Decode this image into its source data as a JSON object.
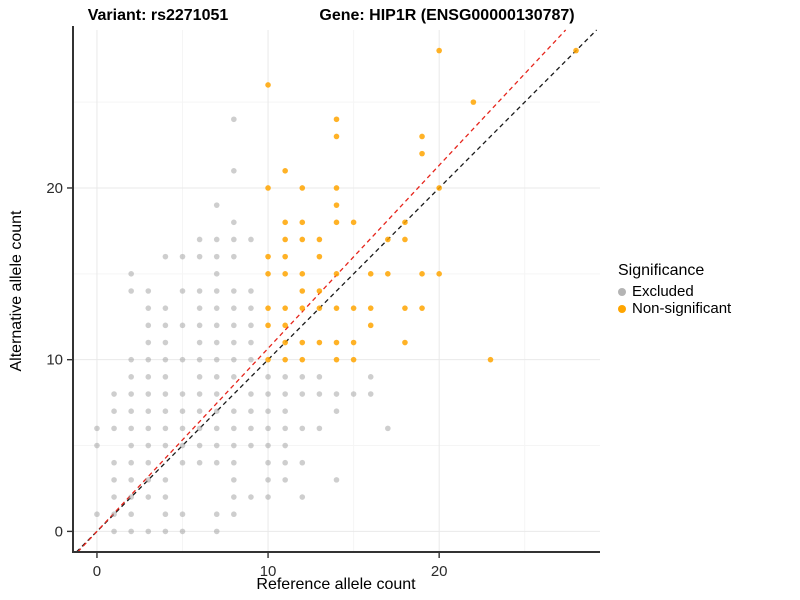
{
  "titles": {
    "variant": "Variant: rs2271051",
    "gene": "Gene: HIP1R (ENSG00000130787)"
  },
  "axes": {
    "x": {
      "label": "Reference allele count",
      "major_ticks": [
        0,
        10,
        20
      ],
      "minor_ticks": [
        5,
        15,
        25
      ]
    },
    "y": {
      "label": "Alternative allele count",
      "major_ticks": [
        0,
        10,
        20
      ],
      "minor_ticks": [
        5,
        15,
        25
      ]
    }
  },
  "legend": {
    "title": "Significance",
    "items": [
      {
        "label": "Excluded",
        "color": "#b4b4b4"
      },
      {
        "label": "Non-significant",
        "color": "#ffa500"
      }
    ]
  },
  "colors": {
    "excluded_point": "#9e9e9e",
    "non_significant_point": "#ffa500",
    "identity_line": "#1a1a1a",
    "ratio_line": "#e6251c",
    "major_grid": "#e9e9e9",
    "minor_grid": "#f5f5f5",
    "axis_line": "#333333",
    "tick_text": "#2b2b2b"
  },
  "chart_data": {
    "type": "scatter",
    "title": "Variant: rs2271051 | Gene: HIP1R (ENSG00000130787)",
    "xlabel": "Reference allele count",
    "ylabel": "Alternative allele count",
    "xlim": [
      -1.4,
      29.4
    ],
    "ylim": [
      -1.2,
      29.2
    ],
    "grid": true,
    "legend_position": "right",
    "series": [
      {
        "name": "Excluded",
        "color": "#9e9e9e",
        "opacity": 0.5,
        "points": [
          [
            1,
            0
          ],
          [
            2,
            0
          ],
          [
            3,
            0
          ],
          [
            4,
            0
          ],
          [
            5,
            0
          ],
          [
            7,
            0
          ],
          [
            0,
            1
          ],
          [
            1,
            1
          ],
          [
            2,
            1
          ],
          [
            4,
            1
          ],
          [
            5,
            1
          ],
          [
            7,
            1
          ],
          [
            8,
            1
          ],
          [
            1,
            2
          ],
          [
            2,
            2
          ],
          [
            3,
            2
          ],
          [
            4,
            2
          ],
          [
            8,
            2
          ],
          [
            9,
            2
          ],
          [
            10,
            2
          ],
          [
            12,
            2
          ],
          [
            1,
            3
          ],
          [
            2,
            3
          ],
          [
            3,
            3
          ],
          [
            4,
            3
          ],
          [
            8,
            3
          ],
          [
            10,
            3
          ],
          [
            11,
            3
          ],
          [
            14,
            3
          ],
          [
            1,
            4
          ],
          [
            2,
            4
          ],
          [
            3,
            4
          ],
          [
            5,
            4
          ],
          [
            6,
            4
          ],
          [
            7,
            4
          ],
          [
            8,
            4
          ],
          [
            10,
            4
          ],
          [
            11,
            4
          ],
          [
            12,
            4
          ],
          [
            0,
            5
          ],
          [
            2,
            5
          ],
          [
            3,
            5
          ],
          [
            4,
            5
          ],
          [
            5,
            5
          ],
          [
            6,
            5
          ],
          [
            7,
            5
          ],
          [
            8,
            5
          ],
          [
            9,
            5
          ],
          [
            10,
            5
          ],
          [
            11,
            5
          ],
          [
            0,
            6
          ],
          [
            1,
            6
          ],
          [
            2,
            6
          ],
          [
            3,
            6
          ],
          [
            4,
            6
          ],
          [
            5,
            6
          ],
          [
            6,
            6
          ],
          [
            7,
            6
          ],
          [
            8,
            6
          ],
          [
            9,
            6
          ],
          [
            10,
            6
          ],
          [
            11,
            6
          ],
          [
            12,
            6
          ],
          [
            13,
            6
          ],
          [
            17,
            6
          ],
          [
            1,
            7
          ],
          [
            2,
            7
          ],
          [
            3,
            7
          ],
          [
            4,
            7
          ],
          [
            5,
            7
          ],
          [
            6,
            7
          ],
          [
            7,
            7
          ],
          [
            8,
            7
          ],
          [
            9,
            7
          ],
          [
            10,
            7
          ],
          [
            11,
            7
          ],
          [
            14,
            7
          ],
          [
            1,
            8
          ],
          [
            2,
            8
          ],
          [
            3,
            8
          ],
          [
            4,
            8
          ],
          [
            5,
            8
          ],
          [
            6,
            8
          ],
          [
            7,
            8
          ],
          [
            9,
            8
          ],
          [
            10,
            8
          ],
          [
            11,
            8
          ],
          [
            12,
            8
          ],
          [
            13,
            8
          ],
          [
            14,
            8
          ],
          [
            15,
            8
          ],
          [
            16,
            8
          ],
          [
            2,
            9
          ],
          [
            3,
            9
          ],
          [
            4,
            9
          ],
          [
            6,
            9
          ],
          [
            7,
            9
          ],
          [
            8,
            9
          ],
          [
            10,
            9
          ],
          [
            11,
            9
          ],
          [
            12,
            9
          ],
          [
            13,
            9
          ],
          [
            16,
            9
          ],
          [
            2,
            10
          ],
          [
            3,
            10
          ],
          [
            4,
            10
          ],
          [
            5,
            10
          ],
          [
            6,
            10
          ],
          [
            7,
            10
          ],
          [
            8,
            10
          ],
          [
            9,
            10
          ],
          [
            3,
            11
          ],
          [
            4,
            11
          ],
          [
            6,
            11
          ],
          [
            7,
            11
          ],
          [
            8,
            11
          ],
          [
            9,
            11
          ],
          [
            3,
            12
          ],
          [
            4,
            12
          ],
          [
            5,
            12
          ],
          [
            6,
            12
          ],
          [
            7,
            12
          ],
          [
            8,
            12
          ],
          [
            9,
            12
          ],
          [
            3,
            13
          ],
          [
            4,
            13
          ],
          [
            6,
            13
          ],
          [
            7,
            13
          ],
          [
            8,
            13
          ],
          [
            9,
            13
          ],
          [
            2,
            14
          ],
          [
            3,
            14
          ],
          [
            5,
            14
          ],
          [
            6,
            14
          ],
          [
            7,
            14
          ],
          [
            8,
            14
          ],
          [
            9,
            14
          ],
          [
            2,
            15
          ],
          [
            7,
            15
          ],
          [
            4,
            16
          ],
          [
            5,
            16
          ],
          [
            6,
            16
          ],
          [
            7,
            16
          ],
          [
            8,
            16
          ],
          [
            6,
            17
          ],
          [
            7,
            17
          ],
          [
            8,
            17
          ],
          [
            9,
            17
          ],
          [
            8,
            18
          ],
          [
            7,
            19
          ],
          [
            8,
            21
          ],
          [
            8,
            24
          ]
        ]
      },
      {
        "name": "Non-significant",
        "color": "#ffa500",
        "opacity": 0.85,
        "points": [
          [
            10,
            10
          ],
          [
            11,
            10
          ],
          [
            12,
            10
          ],
          [
            14,
            10
          ],
          [
            15,
            10
          ],
          [
            23,
            10
          ],
          [
            11,
            11
          ],
          [
            12,
            11
          ],
          [
            13,
            11
          ],
          [
            14,
            11
          ],
          [
            15,
            11
          ],
          [
            18,
            11
          ],
          [
            10,
            12
          ],
          [
            11,
            12
          ],
          [
            16,
            12
          ],
          [
            10,
            13
          ],
          [
            11,
            13
          ],
          [
            12,
            13
          ],
          [
            13,
            13
          ],
          [
            14,
            13
          ],
          [
            15,
            13
          ],
          [
            16,
            13
          ],
          [
            18,
            13
          ],
          [
            19,
            13
          ],
          [
            12,
            14
          ],
          [
            13,
            14
          ],
          [
            10,
            15
          ],
          [
            11,
            15
          ],
          [
            12,
            15
          ],
          [
            14,
            15
          ],
          [
            16,
            15
          ],
          [
            17,
            15
          ],
          [
            19,
            15
          ],
          [
            20,
            15
          ],
          [
            10,
            16
          ],
          [
            11,
            16
          ],
          [
            13,
            16
          ],
          [
            11,
            17
          ],
          [
            12,
            17
          ],
          [
            13,
            17
          ],
          [
            17,
            17
          ],
          [
            18,
            17
          ],
          [
            11,
            18
          ],
          [
            12,
            18
          ],
          [
            14,
            18
          ],
          [
            15,
            18
          ],
          [
            18,
            18
          ],
          [
            14,
            19
          ],
          [
            10,
            20
          ],
          [
            12,
            20
          ],
          [
            14,
            20
          ],
          [
            20,
            20
          ],
          [
            11,
            21
          ],
          [
            19,
            22
          ],
          [
            14,
            23
          ],
          [
            19,
            23
          ],
          [
            14,
            24
          ],
          [
            22,
            25
          ],
          [
            10,
            26
          ],
          [
            20,
            28
          ],
          [
            28,
            28
          ]
        ]
      }
    ],
    "lines": [
      {
        "name": "identity-line",
        "slope": 1.0,
        "intercept": 0,
        "style": "dashed",
        "color": "#1a1a1a"
      },
      {
        "name": "ratio-line",
        "slope": 1.066,
        "intercept": 0,
        "style": "dashed",
        "color": "#e6251c"
      }
    ]
  }
}
